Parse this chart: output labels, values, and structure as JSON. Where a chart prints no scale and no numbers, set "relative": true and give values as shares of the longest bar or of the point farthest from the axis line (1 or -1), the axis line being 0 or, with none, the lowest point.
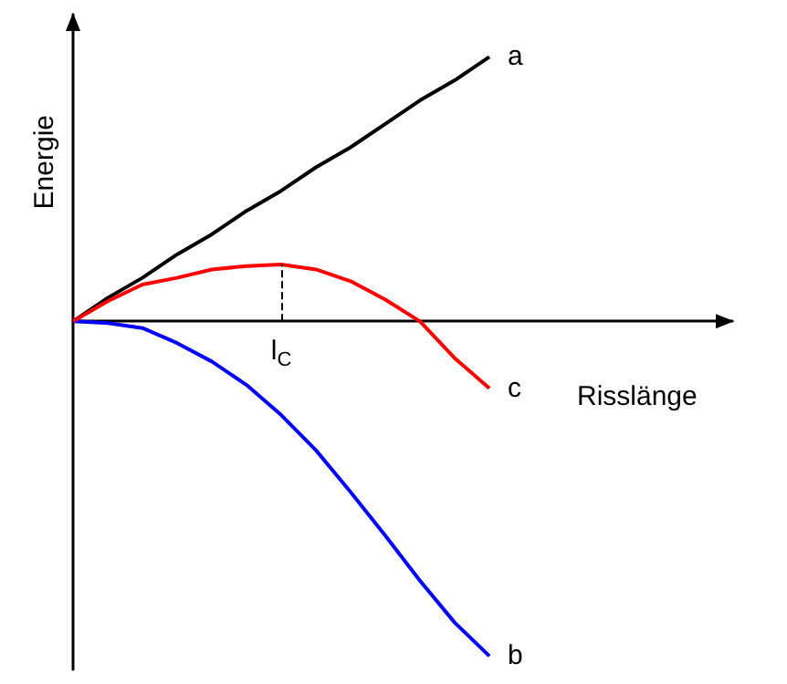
{
  "chart_data": {
    "type": "line",
    "relative": true,
    "xlabel": "Risslänge",
    "ylabel": "Energie",
    "categories": [
      null,
      null,
      null,
      null,
      null,
      null,
      null,
      null,
      null,
      null,
      null,
      null,
      null,
      null,
      null,
      null,
      null,
      null,
      null,
      null
    ],
    "series": [
      {
        "name": "a",
        "color": "#000000",
        "values": [
          0,
          0.07,
          0.13,
          0.2,
          0.26,
          0.33,
          0.39,
          0.46,
          0.52,
          0.59,
          0.66,
          0.72,
          0.79,
          null,
          null,
          null,
          null,
          null,
          null,
          null
        ]
      },
      {
        "name": "b",
        "color": "#0000ff",
        "values": [
          0,
          -0.005,
          -0.02,
          -0.065,
          -0.12,
          -0.19,
          -0.28,
          -0.385,
          -0.51,
          -0.64,
          -0.775,
          -0.9,
          -1,
          null,
          null,
          null,
          null,
          null,
          null,
          null
        ]
      },
      {
        "name": "c",
        "color": "#ff0000",
        "values": [
          0,
          0.06,
          0.11,
          0.13,
          0.155,
          0.165,
          0.17,
          0.155,
          0.12,
          0.065,
          0,
          -0.11,
          -0.2,
          null,
          null,
          null,
          null,
          null,
          null,
          null
        ]
      }
    ],
    "annotations": [
      "l$_{C}$"
    ],
    "grid": false,
    "legend": false,
    "marker": "none",
    "line_style": "solid"
  }
}
